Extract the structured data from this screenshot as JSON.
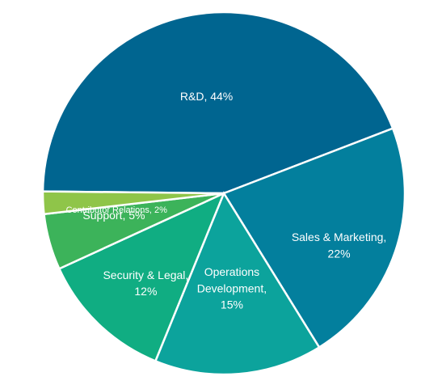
{
  "chart_data": {
    "type": "pie",
    "title": "",
    "slices": [
      {
        "name": "R&D",
        "value": 44,
        "label_lines": [
          "R&D, 44%"
        ],
        "color": "#006590"
      },
      {
        "name": "Sales & Marketing",
        "value": 22,
        "label_lines": [
          "Sales & Marketing,",
          "22%"
        ],
        "color": "#037f9d"
      },
      {
        "name": "Operations Development",
        "value": 15,
        "label_lines": [
          "Operations",
          "Development,",
          "15%"
        ],
        "color": "#0ca39c"
      },
      {
        "name": "Security & Legal",
        "value": 12,
        "label_lines": [
          "Security & Legal,",
          "12%"
        ],
        "color": "#10ad82"
      },
      {
        "name": "Support",
        "value": 5,
        "label_lines": [
          "Support, 5%"
        ],
        "color": "#3cb35a"
      },
      {
        "name": "Contributor Relations",
        "value": 2,
        "label_lines": [
          "Contributor Relations, 2%"
        ],
        "color": "#8fc549"
      }
    ]
  }
}
